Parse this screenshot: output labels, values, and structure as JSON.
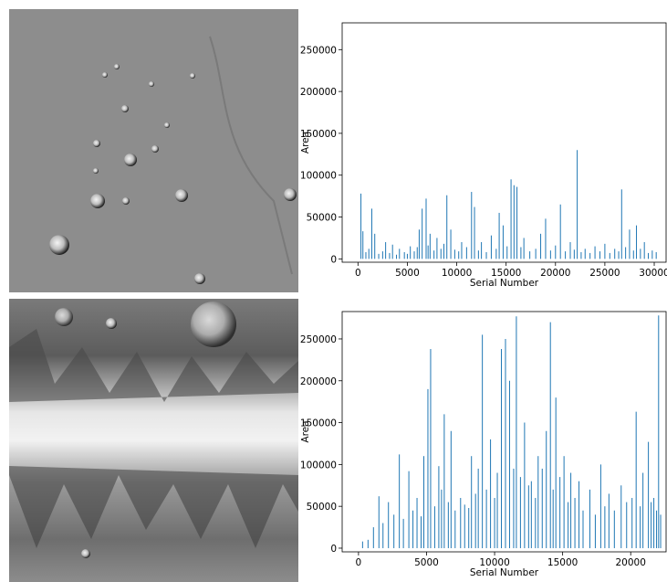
{
  "chart_data": [
    {
      "type": "bar",
      "color": "#1f77b4",
      "x_label": "Serial Number",
      "y_label": "Area",
      "xlim": [
        -1600,
        31200
      ],
      "ylim": [
        -4000,
        282000
      ],
      "xticks": [
        0,
        5000,
        10000,
        15000,
        20000,
        25000,
        30000
      ],
      "yticks": [
        0,
        50000,
        100000,
        150000,
        200000,
        250000
      ],
      "x": [
        300,
        500,
        800,
        1100,
        1400,
        1700,
        2100,
        2500,
        2800,
        3200,
        3500,
        3900,
        4200,
        4700,
        5000,
        5300,
        5700,
        6000,
        6200,
        6500,
        6900,
        7100,
        7300,
        7700,
        8000,
        8400,
        8700,
        9000,
        9400,
        9800,
        10200,
        10500,
        11000,
        11500,
        11800,
        12200,
        12500,
        13000,
        13500,
        14000,
        14300,
        14700,
        15100,
        15500,
        15800,
        16100,
        16500,
        16800,
        17400,
        18000,
        18500,
        19000,
        19500,
        20000,
        20500,
        21000,
        21500,
        21900,
        22200,
        22600,
        23000,
        23500,
        24000,
        24500,
        25000,
        25500,
        26000,
        26400,
        26700,
        27100,
        27500,
        27900,
        28200,
        28600,
        29000,
        29400,
        29800,
        30200
      ],
      "values": [
        78000,
        33000,
        8000,
        12000,
        60000,
        30000,
        6000,
        9000,
        20000,
        7000,
        17000,
        5000,
        12000,
        8000,
        6000,
        15000,
        9000,
        14000,
        35000,
        60000,
        72000,
        16000,
        30000,
        10000,
        25000,
        12000,
        18000,
        76000,
        35000,
        11000,
        9000,
        20000,
        14000,
        80000,
        62000,
        10000,
        20000,
        8000,
        28000,
        12000,
        55000,
        40000,
        15000,
        95000,
        88000,
        86000,
        14000,
        25000,
        9000,
        12000,
        30000,
        48000,
        10000,
        16000,
        65000,
        9000,
        20000,
        11000,
        130000,
        8000,
        12000,
        7000,
        15000,
        9000,
        18000,
        7000,
        12000,
        9000,
        83000,
        14000,
        35000,
        10000,
        40000,
        12000,
        20000,
        7000,
        10000,
        8000
      ]
    },
    {
      "type": "bar",
      "color": "#1f77b4",
      "x_label": "Serial Number",
      "y_label": "Area",
      "xlim": [
        -1200,
        22600
      ],
      "ylim": [
        -4400,
        282700
      ],
      "xticks": [
        0,
        5000,
        10000,
        15000,
        20000
      ],
      "yticks": [
        0,
        50000,
        100000,
        150000,
        200000,
        250000
      ],
      "x": [
        300,
        700,
        1100,
        1500,
        1800,
        2200,
        2600,
        3000,
        3300,
        3700,
        4000,
        4300,
        4600,
        4800,
        5100,
        5300,
        5600,
        5900,
        6100,
        6300,
        6600,
        6800,
        7100,
        7500,
        7800,
        8100,
        8300,
        8600,
        8800,
        9100,
        9400,
        9700,
        10000,
        10200,
        10500,
        10800,
        11100,
        11400,
        11600,
        11900,
        12200,
        12500,
        12700,
        13000,
        13200,
        13500,
        13800,
        14100,
        14300,
        14500,
        14800,
        15100,
        15400,
        15600,
        15900,
        16200,
        16500,
        17000,
        17400,
        17800,
        18100,
        18400,
        18800,
        19300,
        19700,
        20100,
        20400,
        20700,
        20900,
        21300,
        21500,
        21700,
        21900,
        22050,
        22200
      ],
      "values": [
        8000,
        10000,
        25000,
        62000,
        30000,
        55000,
        40000,
        112000,
        35000,
        92000,
        45000,
        60000,
        38000,
        110000,
        190000,
        238000,
        50000,
        98000,
        70000,
        160000,
        55000,
        140000,
        45000,
        60000,
        52000,
        48000,
        110000,
        65000,
        95000,
        255000,
        70000,
        130000,
        60000,
        90000,
        238000,
        250000,
        200000,
        95000,
        277000,
        85000,
        150000,
        75000,
        80000,
        60000,
        110000,
        95000,
        140000,
        270000,
        70000,
        180000,
        85000,
        110000,
        55000,
        90000,
        60000,
        80000,
        45000,
        70000,
        40000,
        100000,
        50000,
        65000,
        45000,
        75000,
        55000,
        60000,
        163000,
        50000,
        90000,
        127000,
        55000,
        60000,
        45000,
        278000,
        40000
      ]
    }
  ]
}
